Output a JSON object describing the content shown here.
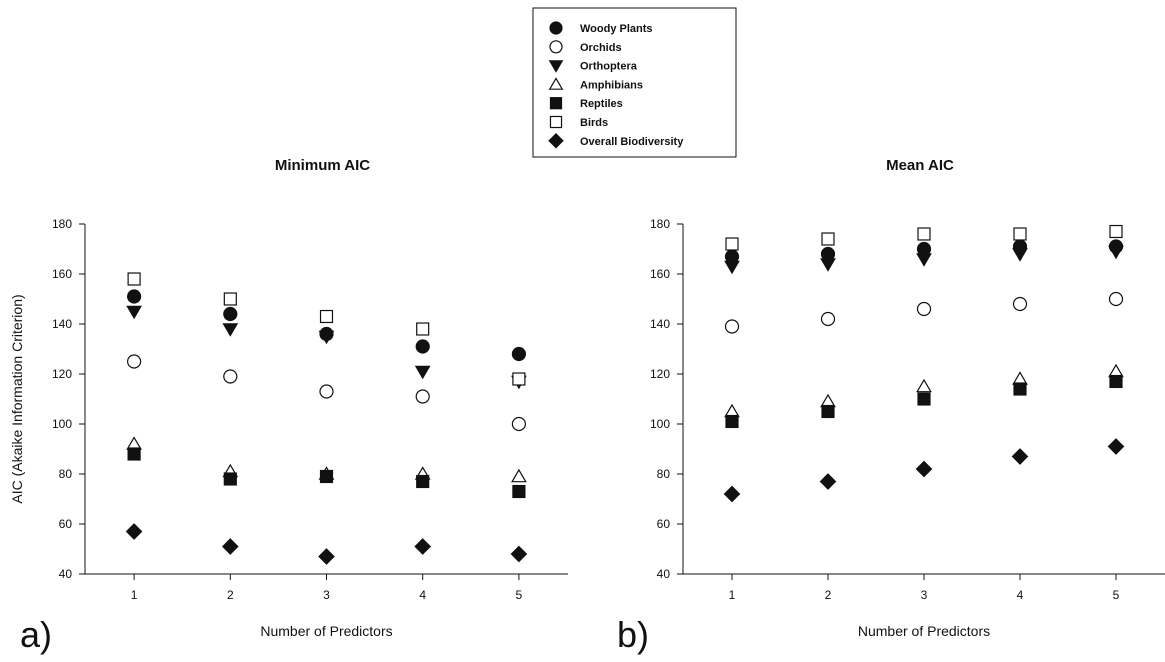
{
  "legend": {
    "placement": "top-center",
    "entries": [
      {
        "name": "Woody Plants",
        "marker": "circle-filled"
      },
      {
        "name": "Orchids",
        "marker": "circle-open"
      },
      {
        "name": "Orthoptera",
        "marker": "triangle-down-filled"
      },
      {
        "name": "Amphibians",
        "marker": "triangle-up-open"
      },
      {
        "name": "Reptiles",
        "marker": "square-filled"
      },
      {
        "name": "Birds",
        "marker": "square-open"
      },
      {
        "name": "Overall Biodiversity",
        "marker": "diamond-filled"
      }
    ]
  },
  "colors": {
    "marker": "#111111",
    "axis": "#111111",
    "background": "#ffffff"
  },
  "chart_data": [
    {
      "type": "scatter",
      "panel": "a)",
      "title": "Minimum AIC",
      "xlabel": "Number of Predictors",
      "ylabel": "AIC (Akaike Information Criterion)",
      "xlim": [
        0.5,
        5.5
      ],
      "ylim": [
        40,
        180
      ],
      "xticks": [
        1,
        2,
        3,
        4,
        5
      ],
      "yticks": [
        40,
        60,
        80,
        100,
        120,
        140,
        160,
        180
      ],
      "grid": false,
      "x": [
        1,
        2,
        3,
        4,
        5
      ],
      "series": [
        {
          "name": "Woody Plants",
          "values": [
            151,
            144,
            136,
            131,
            128
          ]
        },
        {
          "name": "Orchids",
          "values": [
            125,
            119,
            113,
            111,
            100
          ]
        },
        {
          "name": "Orthoptera",
          "values": [
            145,
            138,
            135,
            121,
            117
          ]
        },
        {
          "name": "Amphibians",
          "values": [
            92,
            81,
            80,
            80,
            79
          ]
        },
        {
          "name": "Reptiles",
          "values": [
            88,
            78,
            79,
            77,
            73
          ]
        },
        {
          "name": "Birds",
          "values": [
            158,
            150,
            143,
            138,
            118
          ]
        },
        {
          "name": "Overall Biodiversity",
          "values": [
            57,
            51,
            47,
            51,
            48
          ]
        }
      ]
    },
    {
      "type": "scatter",
      "panel": "b)",
      "title": "Mean AIC",
      "xlabel": "Number of Predictors",
      "ylabel": "",
      "xlim": [
        0.5,
        5.5
      ],
      "ylim": [
        40,
        180
      ],
      "xticks": [
        1,
        2,
        3,
        4,
        5
      ],
      "yticks": [
        40,
        60,
        80,
        100,
        120,
        140,
        160,
        180
      ],
      "grid": false,
      "x": [
        1,
        2,
        3,
        4,
        5
      ],
      "series": [
        {
          "name": "Woody Plants",
          "values": [
            167,
            168,
            170,
            171,
            171
          ]
        },
        {
          "name": "Orchids",
          "values": [
            139,
            142,
            146,
            148,
            150
          ]
        },
        {
          "name": "Orthoptera",
          "values": [
            163,
            164,
            166,
            168,
            169
          ]
        },
        {
          "name": "Amphibians",
          "values": [
            105,
            109,
            115,
            118,
            121
          ]
        },
        {
          "name": "Reptiles",
          "values": [
            101,
            105,
            110,
            114,
            117
          ]
        },
        {
          "name": "Birds",
          "values": [
            172,
            174,
            176,
            176,
            177
          ]
        },
        {
          "name": "Overall Biodiversity",
          "values": [
            72,
            77,
            82,
            87,
            91
          ]
        }
      ]
    }
  ]
}
